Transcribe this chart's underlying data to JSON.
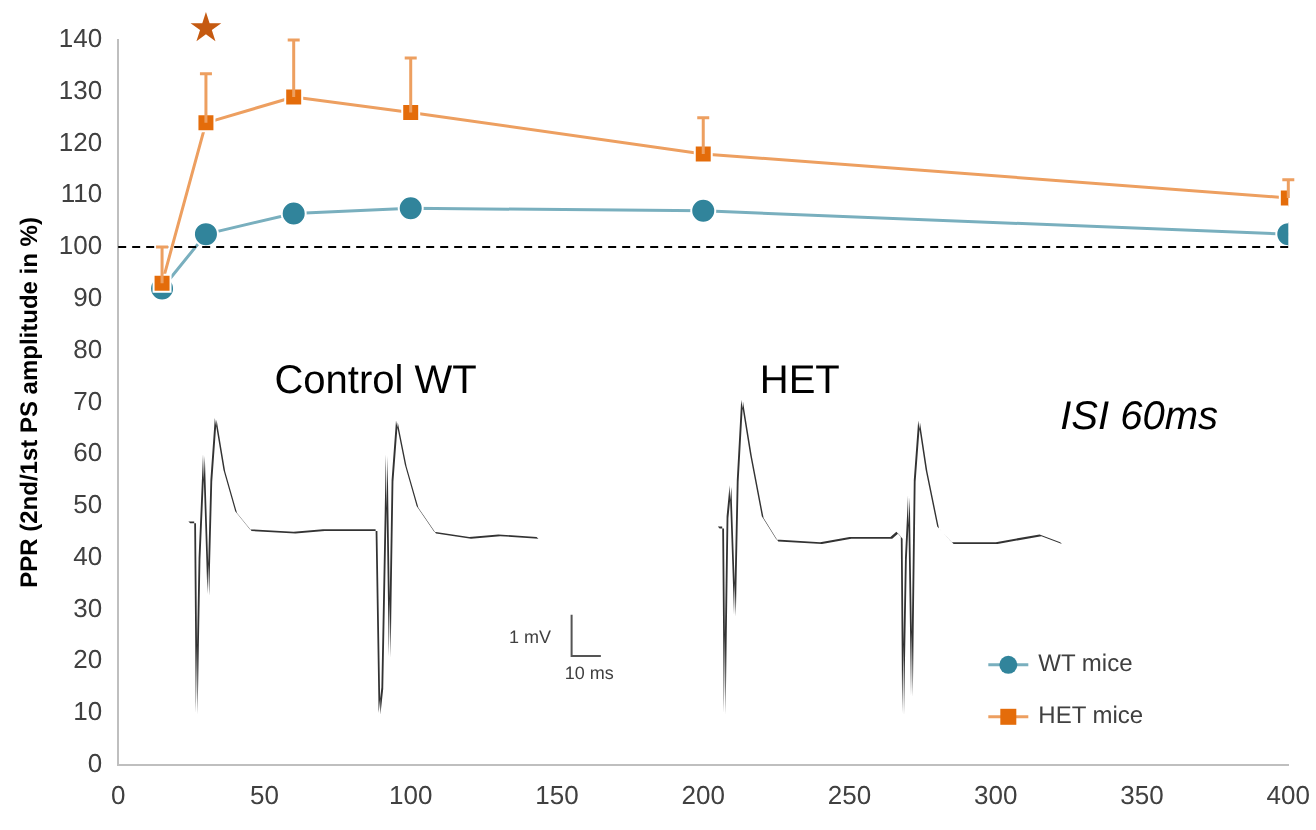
{
  "chart_data": {
    "type": "line",
    "ylabel": "PPR (2nd/1st PS amplitude in %)",
    "x": [
      15,
      30,
      60,
      100,
      200,
      400
    ],
    "xlim": [
      0,
      400
    ],
    "xticks": [
      0,
      50,
      100,
      150,
      200,
      250,
      300,
      350,
      400
    ],
    "ylim": [
      0,
      140
    ],
    "yticks": [
      0,
      10,
      20,
      30,
      40,
      50,
      60,
      70,
      80,
      90,
      100,
      110,
      120,
      130,
      140
    ],
    "series": [
      {
        "name": "WT mice",
        "color": "#31849b",
        "marker": "circle",
        "values": [
          92,
          102.5,
          106.5,
          107.5,
          107,
          102.5
        ]
      },
      {
        "name": "HET mice",
        "color": "#e46c0a",
        "marker": "square",
        "values": [
          93,
          124,
          129,
          126,
          118,
          109.5
        ],
        "errors": [
          [
            93,
            100
          ],
          [
            124,
            133.5
          ],
          [
            129,
            140
          ],
          [
            126,
            136.5
          ],
          [
            118,
            125
          ],
          [
            109.5,
            113
          ]
        ]
      }
    ],
    "ref_lines": [
      {
        "axis": "y",
        "value": 100,
        "line_style": "dashed",
        "color": "#000000"
      }
    ],
    "annotations": [
      "★",
      "Control WT",
      "HET",
      "ISI 60ms",
      "1 mV",
      "10 ms"
    ],
    "grid": false,
    "legend": "bottom right",
    "line_style": "solid"
  }
}
